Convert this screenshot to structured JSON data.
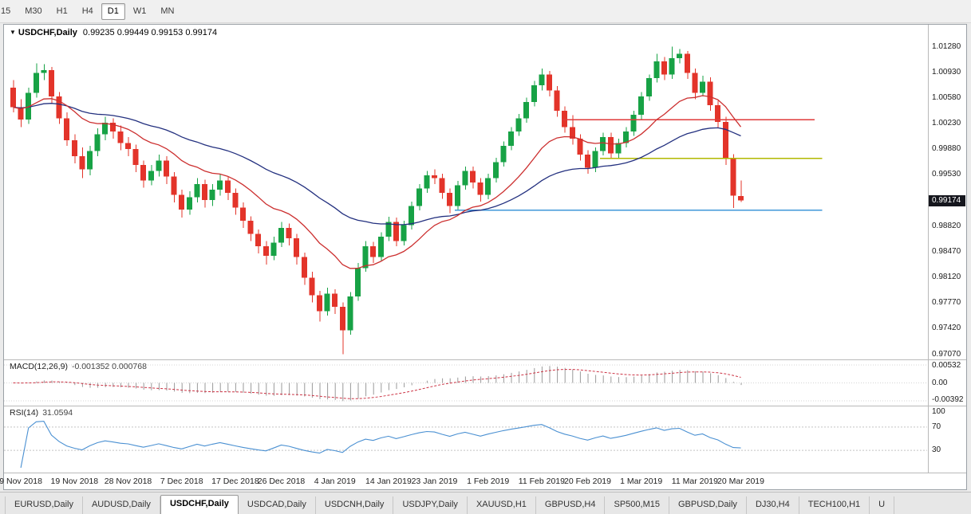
{
  "colors": {
    "up": "#17a245",
    "down": "#e3342a",
    "macd_histogram": "#9a9a9a",
    "badge_bg": "#15161d"
  },
  "toolbar": {
    "periods": [
      {
        "label": "15",
        "active": false
      },
      {
        "label": "M30",
        "active": false
      },
      {
        "label": "H1",
        "active": false
      },
      {
        "label": "H4",
        "active": false
      },
      {
        "label": "D1",
        "active": true
      },
      {
        "label": "W1",
        "active": false
      },
      {
        "label": "MN",
        "active": false
      }
    ]
  },
  "chart": {
    "symbol_label": "USDCHF,Daily",
    "ohlc_text": "0.99235 0.99449 0.99153 0.99174",
    "dropdown_glyph": "▼"
  },
  "price_axis": {
    "current_price": "0.99174"
  },
  "chart_data": {
    "type": "candlestick",
    "symbol": "USDCHF",
    "timeframe": "Daily",
    "ylim": [
      0.97,
      1.0158
    ],
    "y_ticks": [
      "1.01280",
      "1.00930",
      "1.00580",
      "1.00230",
      "0.99880",
      "0.99530",
      "0.98820",
      "0.98470",
      "0.98120",
      "0.97770",
      "0.97420",
      "0.97070"
    ],
    "x_labels": [
      {
        "label": "9 Nov 2018",
        "i": 1
      },
      {
        "label": "19 Nov 2018",
        "i": 8
      },
      {
        "label": "28 Nov 2018",
        "i": 15
      },
      {
        "label": "7 Dec 2018",
        "i": 22
      },
      {
        "label": "17 Dec 2018",
        "i": 29
      },
      {
        "label": "26 Dec 2018",
        "i": 35
      },
      {
        "label": "4 Jan 2019",
        "i": 42
      },
      {
        "label": "14 Jan 2019",
        "i": 49
      },
      {
        "label": "23 Jan 2019",
        "i": 55
      },
      {
        "label": "1 Feb 2019",
        "i": 62
      },
      {
        "label": "11 Feb 2019",
        "i": 69
      },
      {
        "label": "20 Feb 2019",
        "i": 75
      },
      {
        "label": "1 Mar 2019",
        "i": 82
      },
      {
        "label": "11 Mar 2019",
        "i": 89
      },
      {
        "label": "20 Mar 2019",
        "i": 95
      }
    ],
    "ohlc": [
      [
        1.0072,
        1.0082,
        1.0038,
        1.0045
      ],
      [
        1.0045,
        1.0056,
        1.0018,
        1.0028
      ],
      [
        1.0028,
        1.0072,
        1.0022,
        1.0065
      ],
      [
        1.0065,
        1.0105,
        1.0058,
        1.0092
      ],
      [
        1.0092,
        1.0104,
        1.0082,
        1.0096
      ],
      [
        1.0096,
        1.01,
        1.005,
        1.006
      ],
      [
        1.006,
        1.0066,
        1.0022,
        1.003
      ],
      [
        1.003,
        1.0038,
        0.9992,
        1.0
      ],
      [
        1.0,
        1.0008,
        0.9968,
        0.9978
      ],
      [
        0.9978,
        0.999,
        0.9948,
        0.996
      ],
      [
        0.996,
        0.9992,
        0.9952,
        0.9985
      ],
      [
        0.9985,
        1.0016,
        0.9978,
        1.0008
      ],
      [
        1.0008,
        1.0032,
        1.0,
        1.0024
      ],
      [
        1.0024,
        1.003,
        1.0002,
        1.0012
      ],
      [
        1.0012,
        1.002,
        0.9986,
        0.9996
      ],
      [
        0.9996,
        1.0004,
        0.9978,
        0.9988
      ],
      [
        0.9988,
        0.9994,
        0.9956,
        0.9966
      ],
      [
        0.9966,
        0.9972,
        0.9935,
        0.9945
      ],
      [
        0.9945,
        0.9966,
        0.9938,
        0.9958
      ],
      [
        0.9958,
        0.998,
        0.995,
        0.9972
      ],
      [
        0.9972,
        0.9978,
        0.994,
        0.995
      ],
      [
        0.995,
        0.9956,
        0.9915,
        0.9925
      ],
      [
        0.9925,
        0.9932,
        0.9894,
        0.9905
      ],
      [
        0.9905,
        0.993,
        0.9898,
        0.9922
      ],
      [
        0.9922,
        0.9948,
        0.9915,
        0.994
      ],
      [
        0.994,
        0.9946,
        0.9908,
        0.9918
      ],
      [
        0.9918,
        0.994,
        0.991,
        0.9932
      ],
      [
        0.9932,
        0.9953,
        0.9924,
        0.9945
      ],
      [
        0.9945,
        0.995,
        0.9918,
        0.9928
      ],
      [
        0.9928,
        0.9934,
        0.9898,
        0.9908
      ],
      [
        0.9908,
        0.9915,
        0.988,
        0.989
      ],
      [
        0.989,
        0.9896,
        0.9862,
        0.9872
      ],
      [
        0.9872,
        0.9878,
        0.9845,
        0.9855
      ],
      [
        0.9855,
        0.9862,
        0.983,
        0.9842
      ],
      [
        0.9842,
        0.9868,
        0.9836,
        0.986
      ],
      [
        0.986,
        0.9888,
        0.9854,
        0.988
      ],
      [
        0.988,
        0.9886,
        0.9856,
        0.9866
      ],
      [
        0.9866,
        0.9872,
        0.983,
        0.984
      ],
      [
        0.984,
        0.9846,
        0.9802,
        0.9812
      ],
      [
        0.9812,
        0.982,
        0.9778,
        0.9788
      ],
      [
        0.9788,
        0.9794,
        0.9752,
        0.9766
      ],
      [
        0.9766,
        0.9798,
        0.976,
        0.979
      ],
      [
        0.979,
        0.9796,
        0.9762,
        0.9772
      ],
      [
        0.9772,
        0.9778,
        0.9707,
        0.974
      ],
      [
        0.974,
        0.9792,
        0.9734,
        0.9786
      ],
      [
        0.9786,
        0.9832,
        0.978,
        0.9825
      ],
      [
        0.9825,
        0.9862,
        0.982,
        0.9855
      ],
      [
        0.9855,
        0.9861,
        0.9832,
        0.984
      ],
      [
        0.984,
        0.9874,
        0.9834,
        0.9868
      ],
      [
        0.9868,
        0.9895,
        0.9862,
        0.9888
      ],
      [
        0.9888,
        0.9894,
        0.9855,
        0.9862
      ],
      [
        0.9862,
        0.989,
        0.9856,
        0.9884
      ],
      [
        0.9884,
        0.9916,
        0.9878,
        0.991
      ],
      [
        0.991,
        0.994,
        0.9904,
        0.9934
      ],
      [
        0.9934,
        0.9958,
        0.9928,
        0.9952
      ],
      [
        0.9952,
        0.996,
        0.994,
        0.9948
      ],
      [
        0.9948,
        0.9954,
        0.992,
        0.9928
      ],
      [
        0.9928,
        0.9934,
        0.99,
        0.991
      ],
      [
        0.991,
        0.9944,
        0.9904,
        0.9938
      ],
      [
        0.9938,
        0.9964,
        0.9932,
        0.9958
      ],
      [
        0.9958,
        0.9964,
        0.9934,
        0.9942
      ],
      [
        0.9942,
        0.9948,
        0.9916,
        0.9925
      ],
      [
        0.9925,
        0.9954,
        0.9919,
        0.9948
      ],
      [
        0.9948,
        0.9976,
        0.9942,
        0.997
      ],
      [
        0.997,
        0.9998,
        0.9964,
        0.9992
      ],
      [
        0.9992,
        1.0018,
        0.9986,
        1.0012
      ],
      [
        1.0012,
        1.0036,
        1.0006,
        1.003
      ],
      [
        1.003,
        1.0058,
        1.0024,
        1.0052
      ],
      [
        1.0052,
        1.0081,
        1.0046,
        1.0075
      ],
      [
        1.0075,
        1.0098,
        1.0068,
        1.009
      ],
      [
        1.009,
        1.0095,
        1.006,
        1.0068
      ],
      [
        1.0068,
        1.0074,
        1.0032,
        1.004
      ],
      [
        1.004,
        1.0046,
        1.001,
        1.0018
      ],
      [
        1.0018,
        1.0034,
        0.9994,
        1.0002
      ],
      [
        1.0002,
        1.0008,
        0.9972,
        0.998
      ],
      [
        0.998,
        0.9986,
        0.9954,
        0.9962
      ],
      [
        0.9962,
        0.999,
        0.9956,
        0.9985
      ],
      [
        0.9985,
        1.001,
        0.9979,
        1.0004
      ],
      [
        1.0004,
        1.001,
        0.9974,
        0.9982
      ],
      [
        0.9982,
        1.0002,
        0.9976,
        0.9996
      ],
      [
        0.9996,
        1.0018,
        0.999,
        1.0012
      ],
      [
        1.0012,
        1.004,
        1.0006,
        1.0035
      ],
      [
        1.0035,
        1.0066,
        1.0029,
        1.006
      ],
      [
        1.006,
        1.009,
        1.0054,
        1.0085
      ],
      [
        1.0085,
        1.0118,
        1.0079,
        1.0108
      ],
      [
        1.0108,
        1.0114,
        1.0082,
        1.009
      ],
      [
        1.009,
        1.0128,
        1.0084,
        1.0112
      ],
      [
        1.0112,
        1.0125,
        1.0105,
        1.0118
      ],
      [
        1.0118,
        1.0122,
        1.0084,
        1.0092
      ],
      [
        1.0092,
        1.0098,
        1.0056,
        1.0065
      ],
      [
        1.0065,
        1.0088,
        1.006,
        1.008
      ],
      [
        1.008,
        1.0086,
        1.004,
        1.0048
      ],
      [
        1.0048,
        1.0054,
        1.0016,
        1.0025
      ],
      [
        1.0025,
        1.0032,
        0.9966,
        0.9975
      ],
      [
        0.9975,
        0.9981,
        0.9907,
        0.9924
      ],
      [
        0.99235,
        0.99449,
        0.99153,
        0.99174
      ]
    ],
    "overlays": {
      "ma_fast": {
        "name": "MA fast",
        "period": 16,
        "color": "#cc2f2f"
      },
      "ma_slow": {
        "name": "MA slow",
        "period": 40,
        "color": "#23307f"
      },
      "hlines": [
        {
          "price": 1.0028,
          "from": 72,
          "to": 105,
          "color": "#e03a3a"
        },
        {
          "price": 0.9975,
          "from": 77,
          "to": 106,
          "color": "#b2b800"
        },
        {
          "price": 0.9904,
          "from": 58,
          "to": 106,
          "color": "#3f97d8"
        }
      ]
    },
    "indicators": {
      "macd": {
        "label": "MACD(12,26,9)",
        "values_text": "-0.001352 0.000768",
        "fast": 12,
        "slow": 26,
        "signal": 9,
        "signal_color": "#cc3344",
        "axis": [
          "0.00532",
          "0.00",
          "-0.00392"
        ]
      },
      "rsi": {
        "label": "RSI(14)",
        "value_text": "31.0594",
        "period": 14,
        "line_color": "#4a90d2",
        "levels": [
          70,
          30
        ],
        "axis": [
          "100",
          "70",
          "30"
        ]
      }
    }
  },
  "tabs": [
    {
      "label": "EURUSD,Daily",
      "active": false
    },
    {
      "label": "AUDUSD,Daily",
      "active": false
    },
    {
      "label": "USDCHF,Daily",
      "active": true
    },
    {
      "label": "USDCAD,Daily",
      "active": false
    },
    {
      "label": "USDCNH,Daily",
      "active": false
    },
    {
      "label": "USDJPY,Daily",
      "active": false
    },
    {
      "label": "XAUUSD,H1",
      "active": false
    },
    {
      "label": "GBPUSD,H4",
      "active": false
    },
    {
      "label": "SP500,M15",
      "active": false
    },
    {
      "label": "GBPUSD,Daily",
      "active": false
    },
    {
      "label": "DJ30,H4",
      "active": false
    },
    {
      "label": "TECH100,H1",
      "active": false
    },
    {
      "label": "U",
      "active": false
    }
  ]
}
